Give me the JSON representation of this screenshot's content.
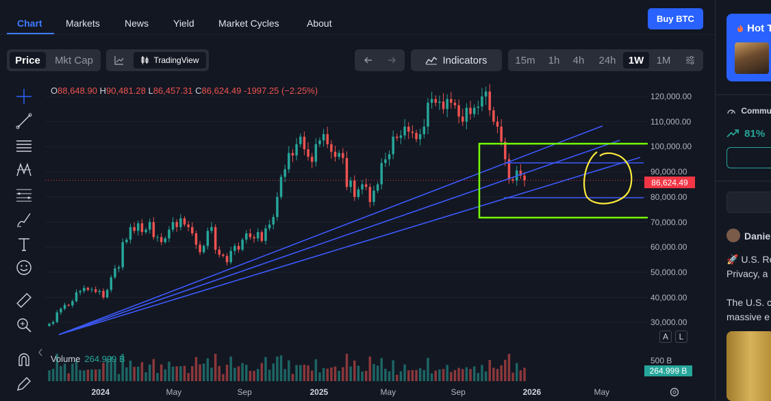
{
  "nav": {
    "tabs": [
      {
        "label": "Chart",
        "active": true
      },
      {
        "label": "Markets"
      },
      {
        "label": "News"
      },
      {
        "label": "Yield"
      },
      {
        "label": "Market Cycles"
      },
      {
        "label": "About"
      }
    ],
    "buy_label": "Buy BTC"
  },
  "toolbar": {
    "price_label": "Price",
    "mktcap_label": "Mkt Cap",
    "tradingview_label": "TradingView",
    "indicators_label": "Indicators",
    "intervals": [
      "15m",
      "1h",
      "4h",
      "24h",
      "1W",
      "1M"
    ],
    "active_interval": "1W"
  },
  "ohlc": {
    "o_label": "O",
    "o": "88,648.90",
    "h_label": "H",
    "h": "90,481.28",
    "l_label": "L",
    "l": "86,457.31",
    "c_label": "C",
    "c": "86,624.49",
    "change": "-1997.25 (−2.25%)"
  },
  "volume": {
    "label": "Volume",
    "value": "264.999 B",
    "badge": "264.999 B",
    "axis_label": "500 B"
  },
  "current_price": "86,624.49",
  "axis_buttons": {
    "auto": "A",
    "log": "L"
  },
  "right_panel": {
    "hot_title": "Hot T",
    "community_label": "Commu",
    "bull_percent": "81%",
    "author": "Danie",
    "post_line1": "🚀 U.S. Re",
    "post_line2": "Privacy, a",
    "post_line3": "The U.S. c",
    "post_line4": "massive e"
  },
  "colors": {
    "accent": "#2962ff",
    "up": "#26a69a",
    "down": "#ef5350",
    "trendline": "#3d5afe",
    "box": "#76ff03",
    "circle": "#ffeb3b"
  },
  "chart_data": {
    "type": "candlestick",
    "interval": "1W",
    "y_ticks": [
      120000,
      110000,
      100000,
      90000,
      80000,
      70000,
      60000,
      50000,
      40000,
      30000
    ],
    "y_tick_labels": [
      "120,000.00",
      "110,000.00",
      "100,000.00",
      "90,000.00",
      "80,000.00",
      "70,000.00",
      "60,000.00",
      "50,000.00",
      "40,000.00",
      "30,000.00"
    ],
    "ylim": [
      27000,
      126000
    ],
    "x_labels": [
      {
        "label": "2024",
        "bold": true
      },
      {
        "label": "May"
      },
      {
        "label": "Sep"
      },
      {
        "label": "2025",
        "bold": true
      },
      {
        "label": "May"
      },
      {
        "label": "Sep"
      },
      {
        "label": "2026",
        "bold": true
      },
      {
        "label": "May"
      }
    ],
    "weekly_close": [
      29500,
      30200,
      34000,
      35500,
      37000,
      36800,
      38500,
      42000,
      42500,
      43800,
      43000,
      43200,
      42200,
      42600,
      40000,
      43000,
      48000,
      51500,
      52000,
      62000,
      63000,
      68000,
      66500,
      69500,
      66000,
      67000,
      70000,
      64000,
      64000,
      62000,
      63500,
      67000,
      70000,
      68000,
      71500,
      69000,
      68000,
      65500,
      61000,
      58000,
      60500,
      66500,
      68000,
      59000,
      57000,
      56500,
      54000,
      58500,
      60500,
      59000,
      63000,
      65500,
      64000,
      63500,
      66000,
      62500,
      67500,
      69000,
      72000,
      80000,
      88000,
      91000,
      97500,
      96500,
      101000,
      104000,
      99000,
      96000,
      94000,
      101000,
      102500,
      105000,
      101000,
      98000,
      96000,
      97500,
      95500,
      84000,
      86500,
      80000,
      83000,
      85000,
      84000,
      78000,
      82500,
      85000,
      93500,
      95000,
      97000,
      104000,
      103500,
      104500,
      108000,
      106000,
      105500,
      103000,
      105000,
      108000,
      117500,
      119000,
      117500,
      118000,
      115000,
      119000,
      117500,
      116500,
      112000,
      110000,
      115500,
      113000,
      115500,
      116000,
      120000,
      122000,
      114500,
      110000,
      108000,
      102000,
      95000,
      87000,
      86500,
      90500,
      88500,
      86624
    ]
  }
}
